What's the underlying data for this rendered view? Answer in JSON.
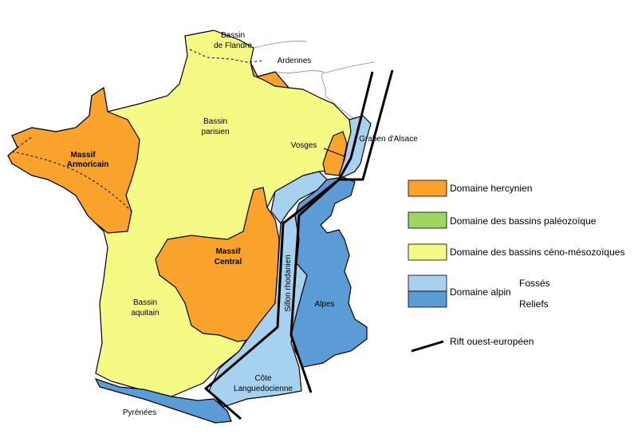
{
  "colors": {
    "hercynien": "#f9a32d",
    "paleozoique": "#9dd660",
    "ceno_mesozoique": "#f5fa84",
    "alpin_fosses": "#a6d1ef",
    "alpin_reliefs": "#5b9bd6",
    "rift": "#000000"
  },
  "labels": {
    "bassin_flandre_1": "Bassin",
    "bassin_flandre_2": "de Flandre",
    "ardennes": "Ardennes",
    "bassin_parisien_1": "Bassin",
    "bassin_parisien_2": "parisien",
    "vosges": "Vosges",
    "graben_alsace": "Graben d'Alsace",
    "massif_armoricain_1": "Massif",
    "massif_armoricain_2": "Armoricain",
    "massif_central_1": "Massif",
    "massif_central_2": "Central",
    "sillon_rhodanien": "Sillon rhodanien",
    "alpes": "Alpes",
    "bassin_aquitain_1": "Bassin",
    "bassin_aquitain_2": "aquitain",
    "cote_languedocienne_1": "Côte",
    "cote_languedocienne_2": "Languedocienne",
    "pyrenees": "Pyrénées"
  },
  "legend": {
    "hercynien": "Domaine hercynien",
    "paleozoique": "Domaine des bassins paléozoïque",
    "ceno_mesozoique": "Domaine des bassins céno-mésozoïques",
    "alpin": "Domaine alpin",
    "fosses": "Fossés",
    "reliefs": "Reliefs",
    "rift": "Rift ouest-européen"
  }
}
